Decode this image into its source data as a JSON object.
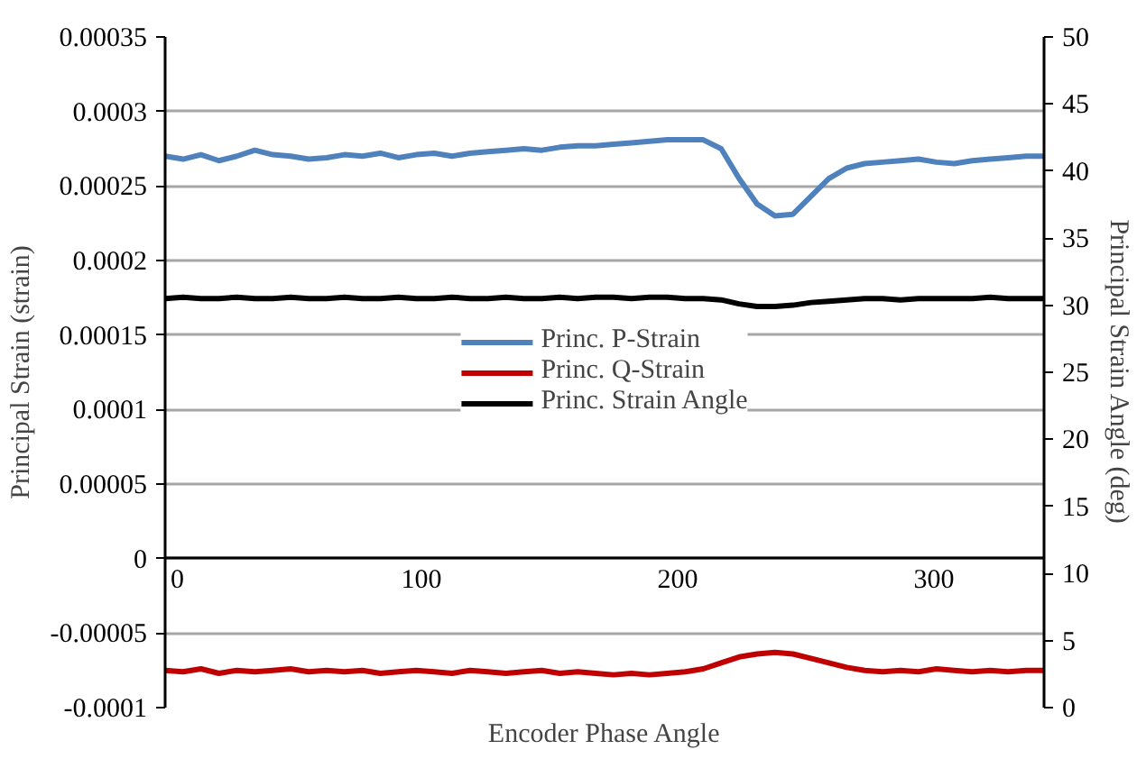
{
  "chart_data": {
    "type": "line",
    "xlabel": "Encoder Phase Angle",
    "ylabel": "Principal Strain (strain)",
    "y2label": "Principal Strain Angle (deg)",
    "x": [
      0,
      7,
      14,
      21,
      28,
      35,
      42,
      49,
      56,
      63,
      70,
      77,
      84,
      91,
      98,
      105,
      112,
      119,
      126,
      133,
      140,
      147,
      154,
      161,
      168,
      175,
      182,
      189,
      196,
      203,
      210,
      217,
      224,
      231,
      238,
      245,
      252,
      259,
      266,
      273,
      280,
      287,
      294,
      301,
      308,
      315,
      322,
      329,
      336,
      343
    ],
    "series": [
      {
        "name": "Princ. P-Strain",
        "color": "#4f81bd",
        "values": [
          0.00027,
          0.000268,
          0.000271,
          0.000267,
          0.00027,
          0.000274,
          0.000271,
          0.00027,
          0.000268,
          0.000269,
          0.000271,
          0.00027,
          0.000272,
          0.000269,
          0.000271,
          0.000272,
          0.00027,
          0.000272,
          0.000273,
          0.000274,
          0.000275,
          0.000274,
          0.000276,
          0.000277,
          0.000277,
          0.000278,
          0.000279,
          0.00028,
          0.000281,
          0.000281,
          0.000281,
          0.000275,
          0.000255,
          0.000238,
          0.00023,
          0.000231,
          0.000243,
          0.000255,
          0.000262,
          0.000265,
          0.000266,
          0.000267,
          0.000268,
          0.000266,
          0.000265,
          0.000267,
          0.000268,
          0.000269,
          0.00027,
          0.00027
        ]
      },
      {
        "name": "Princ. Q-Strain",
        "color": "#c00000",
        "values": [
          -7.5e-05,
          -7.6e-05,
          -7.4e-05,
          -7.7e-05,
          -7.5e-05,
          -7.6e-05,
          -7.5e-05,
          -7.4e-05,
          -7.6e-05,
          -7.5e-05,
          -7.6e-05,
          -7.5e-05,
          -7.7e-05,
          -7.6e-05,
          -7.5e-05,
          -7.6e-05,
          -7.7e-05,
          -7.5e-05,
          -7.6e-05,
          -7.7e-05,
          -7.6e-05,
          -7.5e-05,
          -7.7e-05,
          -7.6e-05,
          -7.7e-05,
          -7.8e-05,
          -7.7e-05,
          -7.8e-05,
          -7.7e-05,
          -7.6e-05,
          -7.4e-05,
          -7e-05,
          -6.6e-05,
          -6.4e-05,
          -6.3e-05,
          -6.4e-05,
          -6.7e-05,
          -7e-05,
          -7.3e-05,
          -7.5e-05,
          -7.6e-05,
          -7.5e-05,
          -7.6e-05,
          -7.4e-05,
          -7.5e-05,
          -7.6e-05,
          -7.5e-05,
          -7.6e-05,
          -7.5e-05,
          -7.5e-05
        ]
      },
      {
        "name": "Princ. Strain Angle",
        "color": "#000000",
        "axis": "y2",
        "values": [
          30.5,
          30.6,
          30.5,
          30.5,
          30.6,
          30.5,
          30.5,
          30.6,
          30.5,
          30.5,
          30.6,
          30.5,
          30.5,
          30.6,
          30.5,
          30.5,
          30.6,
          30.5,
          30.5,
          30.6,
          30.5,
          30.5,
          30.6,
          30.5,
          30.6,
          30.6,
          30.5,
          30.6,
          30.6,
          30.5,
          30.5,
          30.4,
          30.1,
          29.9,
          29.9,
          30.0,
          30.2,
          30.3,
          30.4,
          30.5,
          30.5,
          30.4,
          30.5,
          30.5,
          30.5,
          30.5,
          30.6,
          30.5,
          30.5,
          30.5
        ]
      }
    ],
    "xlim": [
      0,
      343
    ],
    "xticks": [
      0,
      100,
      200,
      300
    ],
    "ylim": [
      -0.0001,
      0.00035
    ],
    "yticks": [
      -0.0001,
      {
        "value": -5e-05,
        "label": "-0.00005"
      },
      0,
      {
        "value": 5e-05,
        "label": "0.00005"
      },
      0.0001,
      0.00015,
      0.0002,
      0.00025,
      0.0003,
      0.00035
    ],
    "y2lim": [
      0,
      50
    ],
    "y2ticks": [
      0,
      5,
      10,
      15,
      20,
      25,
      30,
      35,
      40,
      45,
      50
    ],
    "grid": "y",
    "legend": "center",
    "marker": "none",
    "line_style": "solid"
  }
}
